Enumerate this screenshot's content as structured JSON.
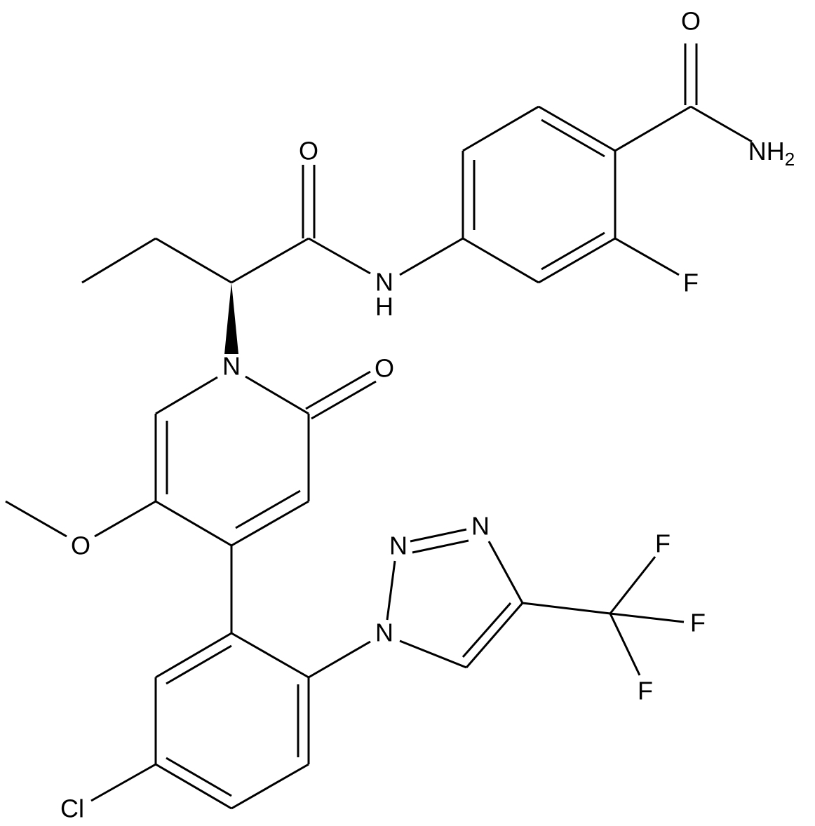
{
  "molecule": {
    "atoms": [
      {
        "symbol": "O"
      },
      {
        "symbol": "NH",
        "subscript": "2"
      },
      {
        "symbol": "F"
      },
      {
        "symbol": "N",
        "hydrogen": "H"
      },
      {
        "symbol": "O"
      },
      {
        "symbol": "N"
      },
      {
        "symbol": "O"
      },
      {
        "symbol": "O"
      },
      {
        "symbol": "Cl"
      },
      {
        "symbol": "N"
      },
      {
        "symbol": "N"
      },
      {
        "symbol": "N"
      },
      {
        "symbol": "F"
      },
      {
        "symbol": "F"
      },
      {
        "symbol": "F"
      }
    ]
  }
}
